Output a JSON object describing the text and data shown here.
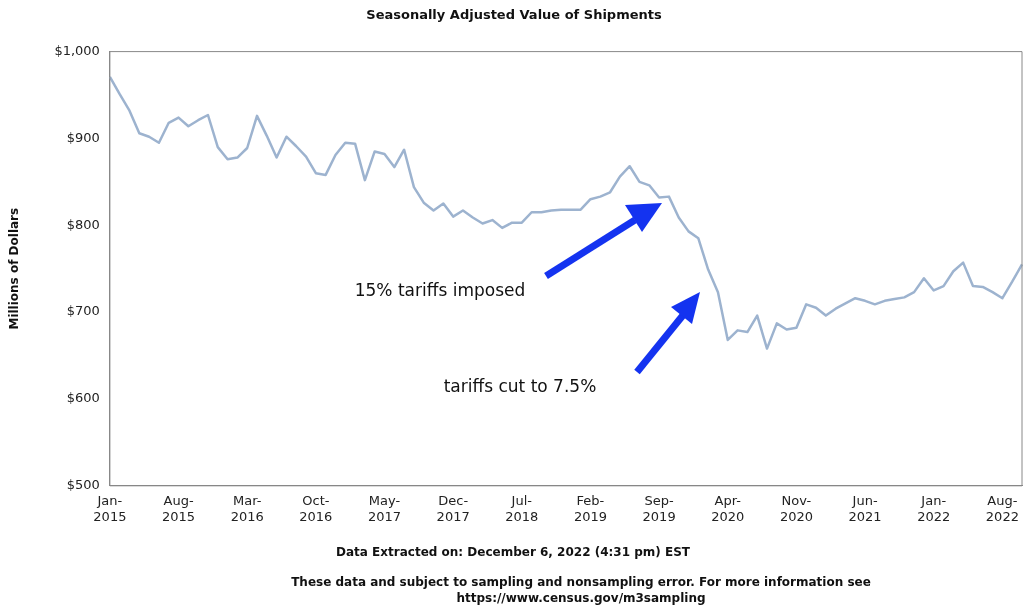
{
  "chart_data": {
    "type": "line",
    "title": "Seasonally Adjusted Value of Shipments",
    "ylabel": "Millions of Dollars",
    "categories": [
      "Jan-2015",
      null,
      null,
      null,
      null,
      null,
      null,
      "Aug-2015",
      null,
      null,
      null,
      null,
      null,
      null,
      "Mar-2016",
      null,
      null,
      null,
      null,
      null,
      null,
      "Oct-2016",
      null,
      null,
      null,
      null,
      null,
      null,
      "May-2017",
      null,
      null,
      null,
      null,
      null,
      null,
      "Dec-2017",
      null,
      null,
      null,
      null,
      null,
      null,
      "Jul-2018",
      null,
      null,
      null,
      null,
      null,
      null,
      "Feb-2019",
      null,
      null,
      null,
      null,
      null,
      null,
      "Sep-2019",
      null,
      null,
      null,
      null,
      null,
      null,
      "Apr-2020",
      null,
      null,
      null,
      null,
      null,
      null,
      "Nov-2020",
      null,
      null,
      null,
      null,
      null,
      null,
      "Jun-2021",
      null,
      null,
      null,
      null,
      null,
      null,
      "Jan-2022",
      null,
      null,
      null,
      null,
      null,
      null,
      "Aug-2022",
      null,
      null
    ],
    "series": [
      {
        "color": "#9db3cf",
        "values": [
          971,
          951,
          932,
          906,
          902,
          895,
          918,
          924,
          914,
          921,
          927,
          890,
          876,
          878,
          889,
          926,
          903,
          878,
          902,
          891,
          879,
          860,
          858,
          881,
          895,
          894,
          852,
          885,
          882,
          867,
          887,
          844,
          826,
          817,
          825,
          810,
          817,
          809,
          802,
          806,
          797,
          803,
          803,
          815,
          815,
          817,
          818,
          818,
          818,
          830,
          833,
          838,
          856,
          868,
          850,
          846,
          832,
          833,
          809,
          793,
          785,
          749,
          723,
          668,
          679,
          677,
          696,
          658,
          687,
          680,
          682,
          709,
          705,
          696,
          704,
          710,
          716,
          713,
          709,
          713,
          715,
          717,
          723,
          739,
          725,
          730,
          747,
          757,
          730,
          729,
          723,
          716,
          735,
          755
        ]
      }
    ],
    "ylim": [
      500,
      1000
    ],
    "yticks": [
      {
        "value": 500,
        "label": "$500"
      },
      {
        "value": 600,
        "label": "$600"
      },
      {
        "value": 700,
        "label": "$700"
      },
      {
        "value": 800,
        "label": "$800"
      },
      {
        "value": 900,
        "label": "$900"
      },
      {
        "value": 1000,
        "label": "$1,000"
      }
    ],
    "grid": false,
    "legend": false,
    "marker": "none",
    "line_style": "solid",
    "annotations": [
      "15% tariffs imposed",
      "tariffs cut to 7.5%",
      "Data Extracted on: December 6, 2022 (4:31 pm) EST",
      "These data and subject to sampling and nonsampling error. For more information see\nhttps://www.census.gov/m3sampling"
    ]
  }
}
